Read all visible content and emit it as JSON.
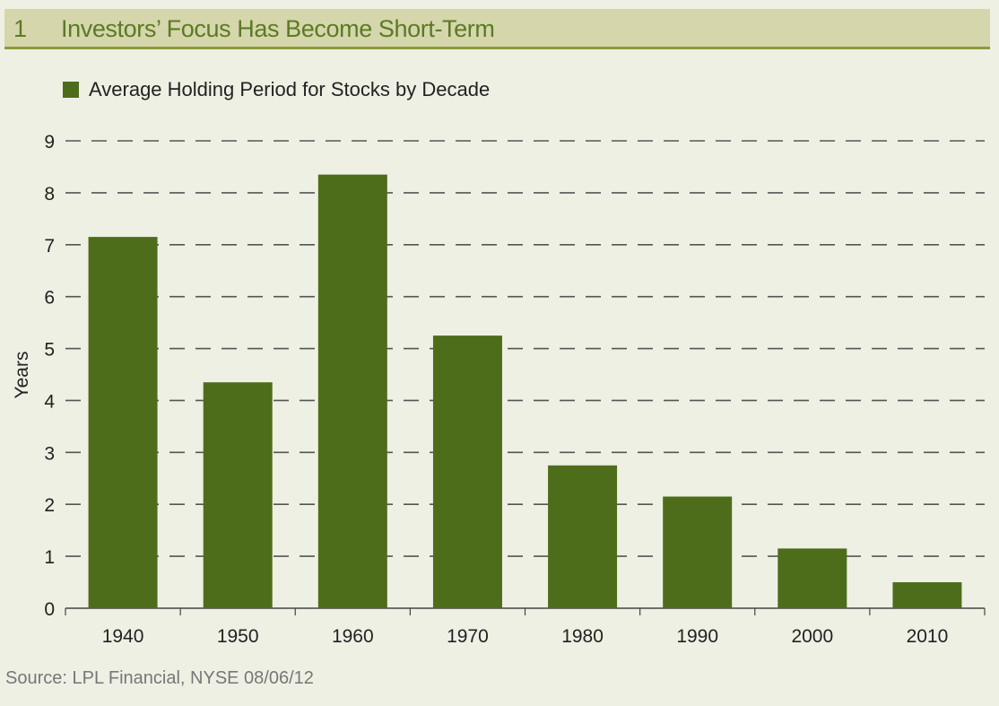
{
  "header": {
    "number": "1",
    "title": "Investors’ Focus Has Become Short-Term"
  },
  "source": "Source: LPL Financial, NYSE   08/06/12",
  "colors": {
    "bar": "#4e6d1a",
    "header_bg": "#d5d6ac",
    "header_text": "#5b7a24",
    "background": "#eef0e4"
  },
  "chart_data": {
    "type": "bar",
    "title": "",
    "xlabel": "",
    "ylabel": "Years",
    "ylim": [
      0,
      9
    ],
    "yticks": [
      0,
      1,
      2,
      3,
      4,
      5,
      6,
      7,
      8,
      9
    ],
    "grid": "dashed horizontal",
    "legend_position": "top-left",
    "categories": [
      "1940",
      "1950",
      "1960",
      "1970",
      "1980",
      "1990",
      "2000",
      "2010"
    ],
    "series": [
      {
        "name": "Average Holding Period for Stocks by Decade",
        "values": [
          7.15,
          4.35,
          8.35,
          5.25,
          2.75,
          2.15,
          1.15,
          0.5
        ]
      }
    ]
  }
}
